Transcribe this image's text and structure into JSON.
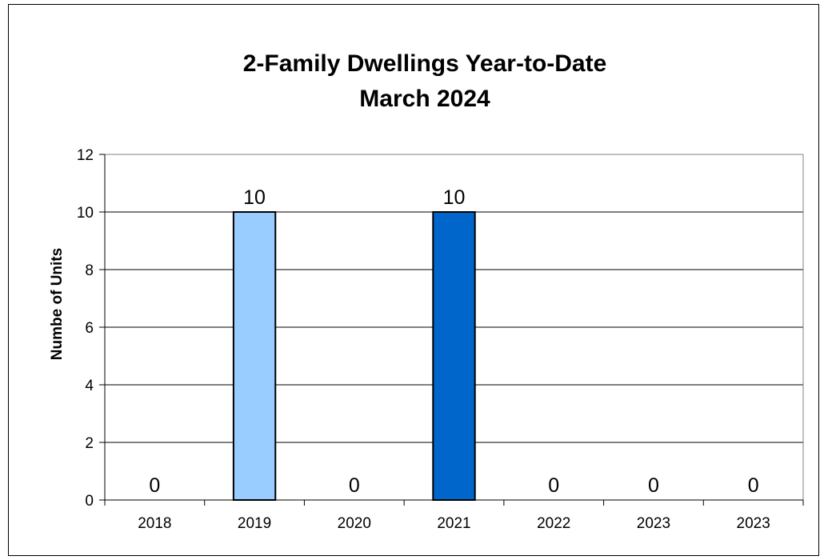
{
  "chart_data": {
    "type": "bar",
    "title": "2-Family Dwellings Year-to-Date",
    "subtitle": "March 2024",
    "xlabel": "",
    "ylabel": "Numbe of Units",
    "categories": [
      "2018",
      "2019",
      "2020",
      "2021",
      "2022",
      "2023",
      "2023"
    ],
    "values": [
      0,
      10,
      0,
      10,
      0,
      0,
      0
    ],
    "data_labels": [
      "0",
      "10",
      "0",
      "10",
      "0",
      "0",
      "0"
    ],
    "bar_colors": [
      "#99ccff",
      "#99ccff",
      "#99ccff",
      "#0066cc",
      "#99ccff",
      "#99ccff",
      "#99ccff"
    ],
    "ylim": [
      0,
      12
    ],
    "y_ticks": [
      0,
      2,
      4,
      6,
      8,
      10,
      12
    ],
    "grid": true,
    "legend": "none"
  }
}
